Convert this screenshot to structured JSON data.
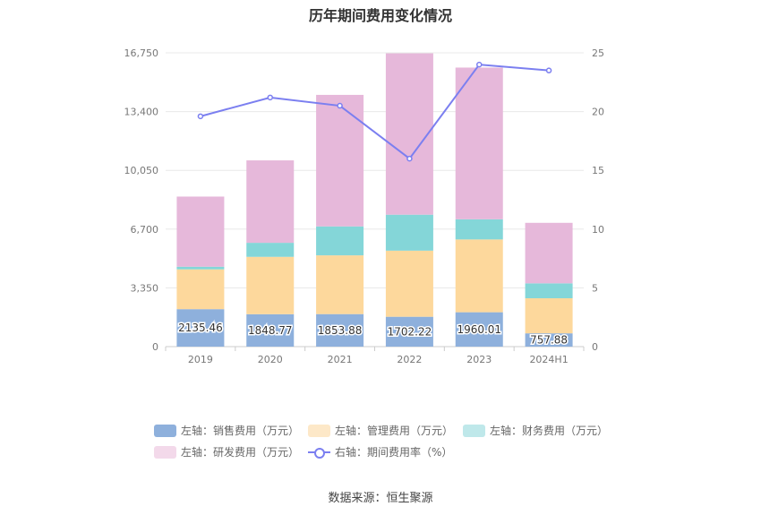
{
  "title": "历年期间费用变化情况",
  "source": "数据来源：恒生聚源",
  "colors": {
    "sales": "#8eb0dc",
    "admin": "#fdd89c",
    "finance": "#84d6d8",
    "rd": "#e6b8da",
    "rate": "#7b7ff0"
  },
  "legend": [
    {
      "key": "sales",
      "label": "左轴：销售费用（万元）",
      "kind": "bar"
    },
    {
      "key": "admin",
      "label": "左轴：管理费用（万元）",
      "kind": "bar"
    },
    {
      "key": "finance",
      "label": "左轴：财务费用（万元）",
      "kind": "bar"
    },
    {
      "key": "rd",
      "label": "左轴：研发费用（万元）",
      "kind": "bar"
    },
    {
      "key": "rate",
      "label": "右轴：期间费用率（%）",
      "kind": "line"
    }
  ],
  "chart_data": {
    "type": "bar",
    "categories": [
      "2019",
      "2020",
      "2021",
      "2022",
      "2023",
      "2024H1"
    ],
    "series": [
      {
        "name": "左轴：销售费用（万元）",
        "key": "sales",
        "values": [
          2135.46,
          1848.77,
          1853.88,
          1702.22,
          1960.01,
          757.88
        ]
      },
      {
        "name": "左轴：管理费用（万元）",
        "key": "admin",
        "values": [
          2270,
          3270,
          3350,
          3770,
          4150,
          2000
        ]
      },
      {
        "name": "左轴：财务费用（万元）",
        "key": "finance",
        "values": [
          150,
          800,
          1650,
          2050,
          1150,
          850
        ]
      },
      {
        "name": "左轴：研发费用（万元）",
        "key": "rd",
        "values": [
          4000,
          4700,
          7500,
          9200,
          8650,
          3450
        ]
      },
      {
        "name": "右轴：期间费用率（%）",
        "key": "rate",
        "type": "line",
        "axis": "right",
        "values": [
          19.6,
          21.2,
          20.5,
          16.0,
          24.0,
          23.5
        ]
      }
    ],
    "data_labels": [
      "2135.46",
      "1848.77",
      "1853.88",
      "1702.22",
      "1960.01",
      "757.88"
    ],
    "y_left": {
      "ticks": [
        0,
        3350,
        6700,
        10050,
        13400,
        16750
      ],
      "tick_labels": [
        "0",
        "3,350",
        "6,700",
        "10,050",
        "13,400",
        "16,750"
      ],
      "ylim": [
        0,
        16750
      ]
    },
    "y_right": {
      "ticks": [
        0,
        5,
        10,
        15,
        20,
        25
      ],
      "tick_labels": [
        "0",
        "5",
        "10",
        "15",
        "20",
        "25"
      ],
      "ylim": [
        0,
        25
      ]
    },
    "grid": true,
    "legend_position": "bottom"
  }
}
